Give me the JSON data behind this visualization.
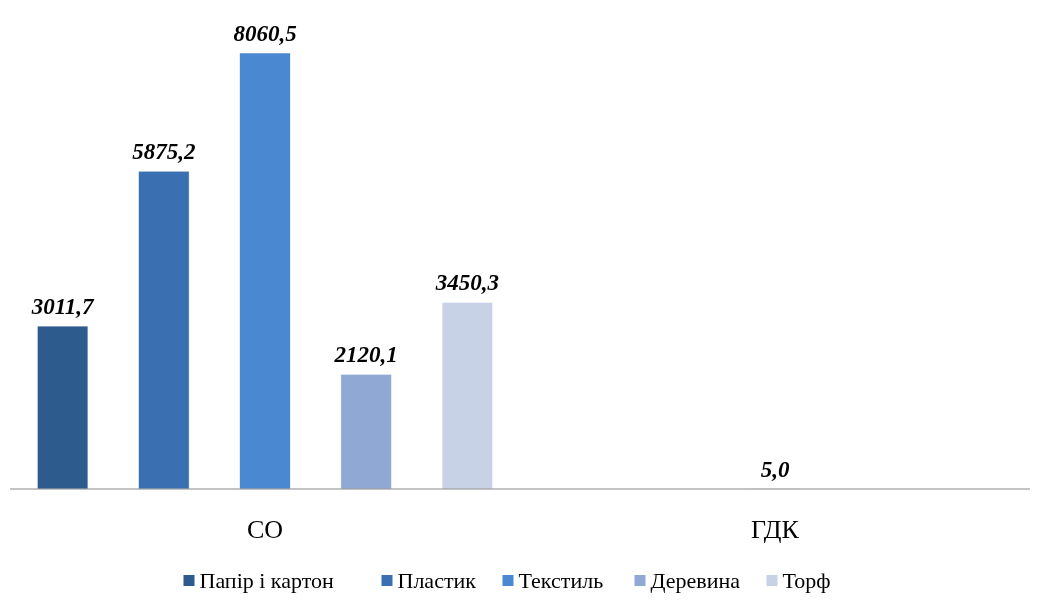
{
  "chart_data": {
    "type": "bar",
    "categories": [
      "СО",
      "ГДК"
    ],
    "legend": "bottom",
    "series": [
      {
        "name": "Папір і картон",
        "color": "#2d5b8e",
        "values": [
          3011.7,
          null
        ],
        "value_labels": [
          "3011,7",
          null
        ]
      },
      {
        "name": "Пластик",
        "color": "#3a70b2",
        "values": [
          5875.2,
          null
        ],
        "value_labels": [
          "5875,2",
          null
        ]
      },
      {
        "name": "Текстиль",
        "color": "#4a88d2",
        "values": [
          8060.5,
          5.0
        ],
        "value_labels": [
          "8060,5",
          "5,0"
        ]
      },
      {
        "name": "Деревина",
        "color": "#8fa9d4",
        "values": [
          2120.1,
          null
        ],
        "value_labels": [
          "2120,1",
          null
        ]
      },
      {
        "name": "Торф",
        "color": "#c8d2e6",
        "values": [
          3450.3,
          null
        ],
        "value_labels": [
          "3450,3",
          null
        ]
      }
    ]
  }
}
